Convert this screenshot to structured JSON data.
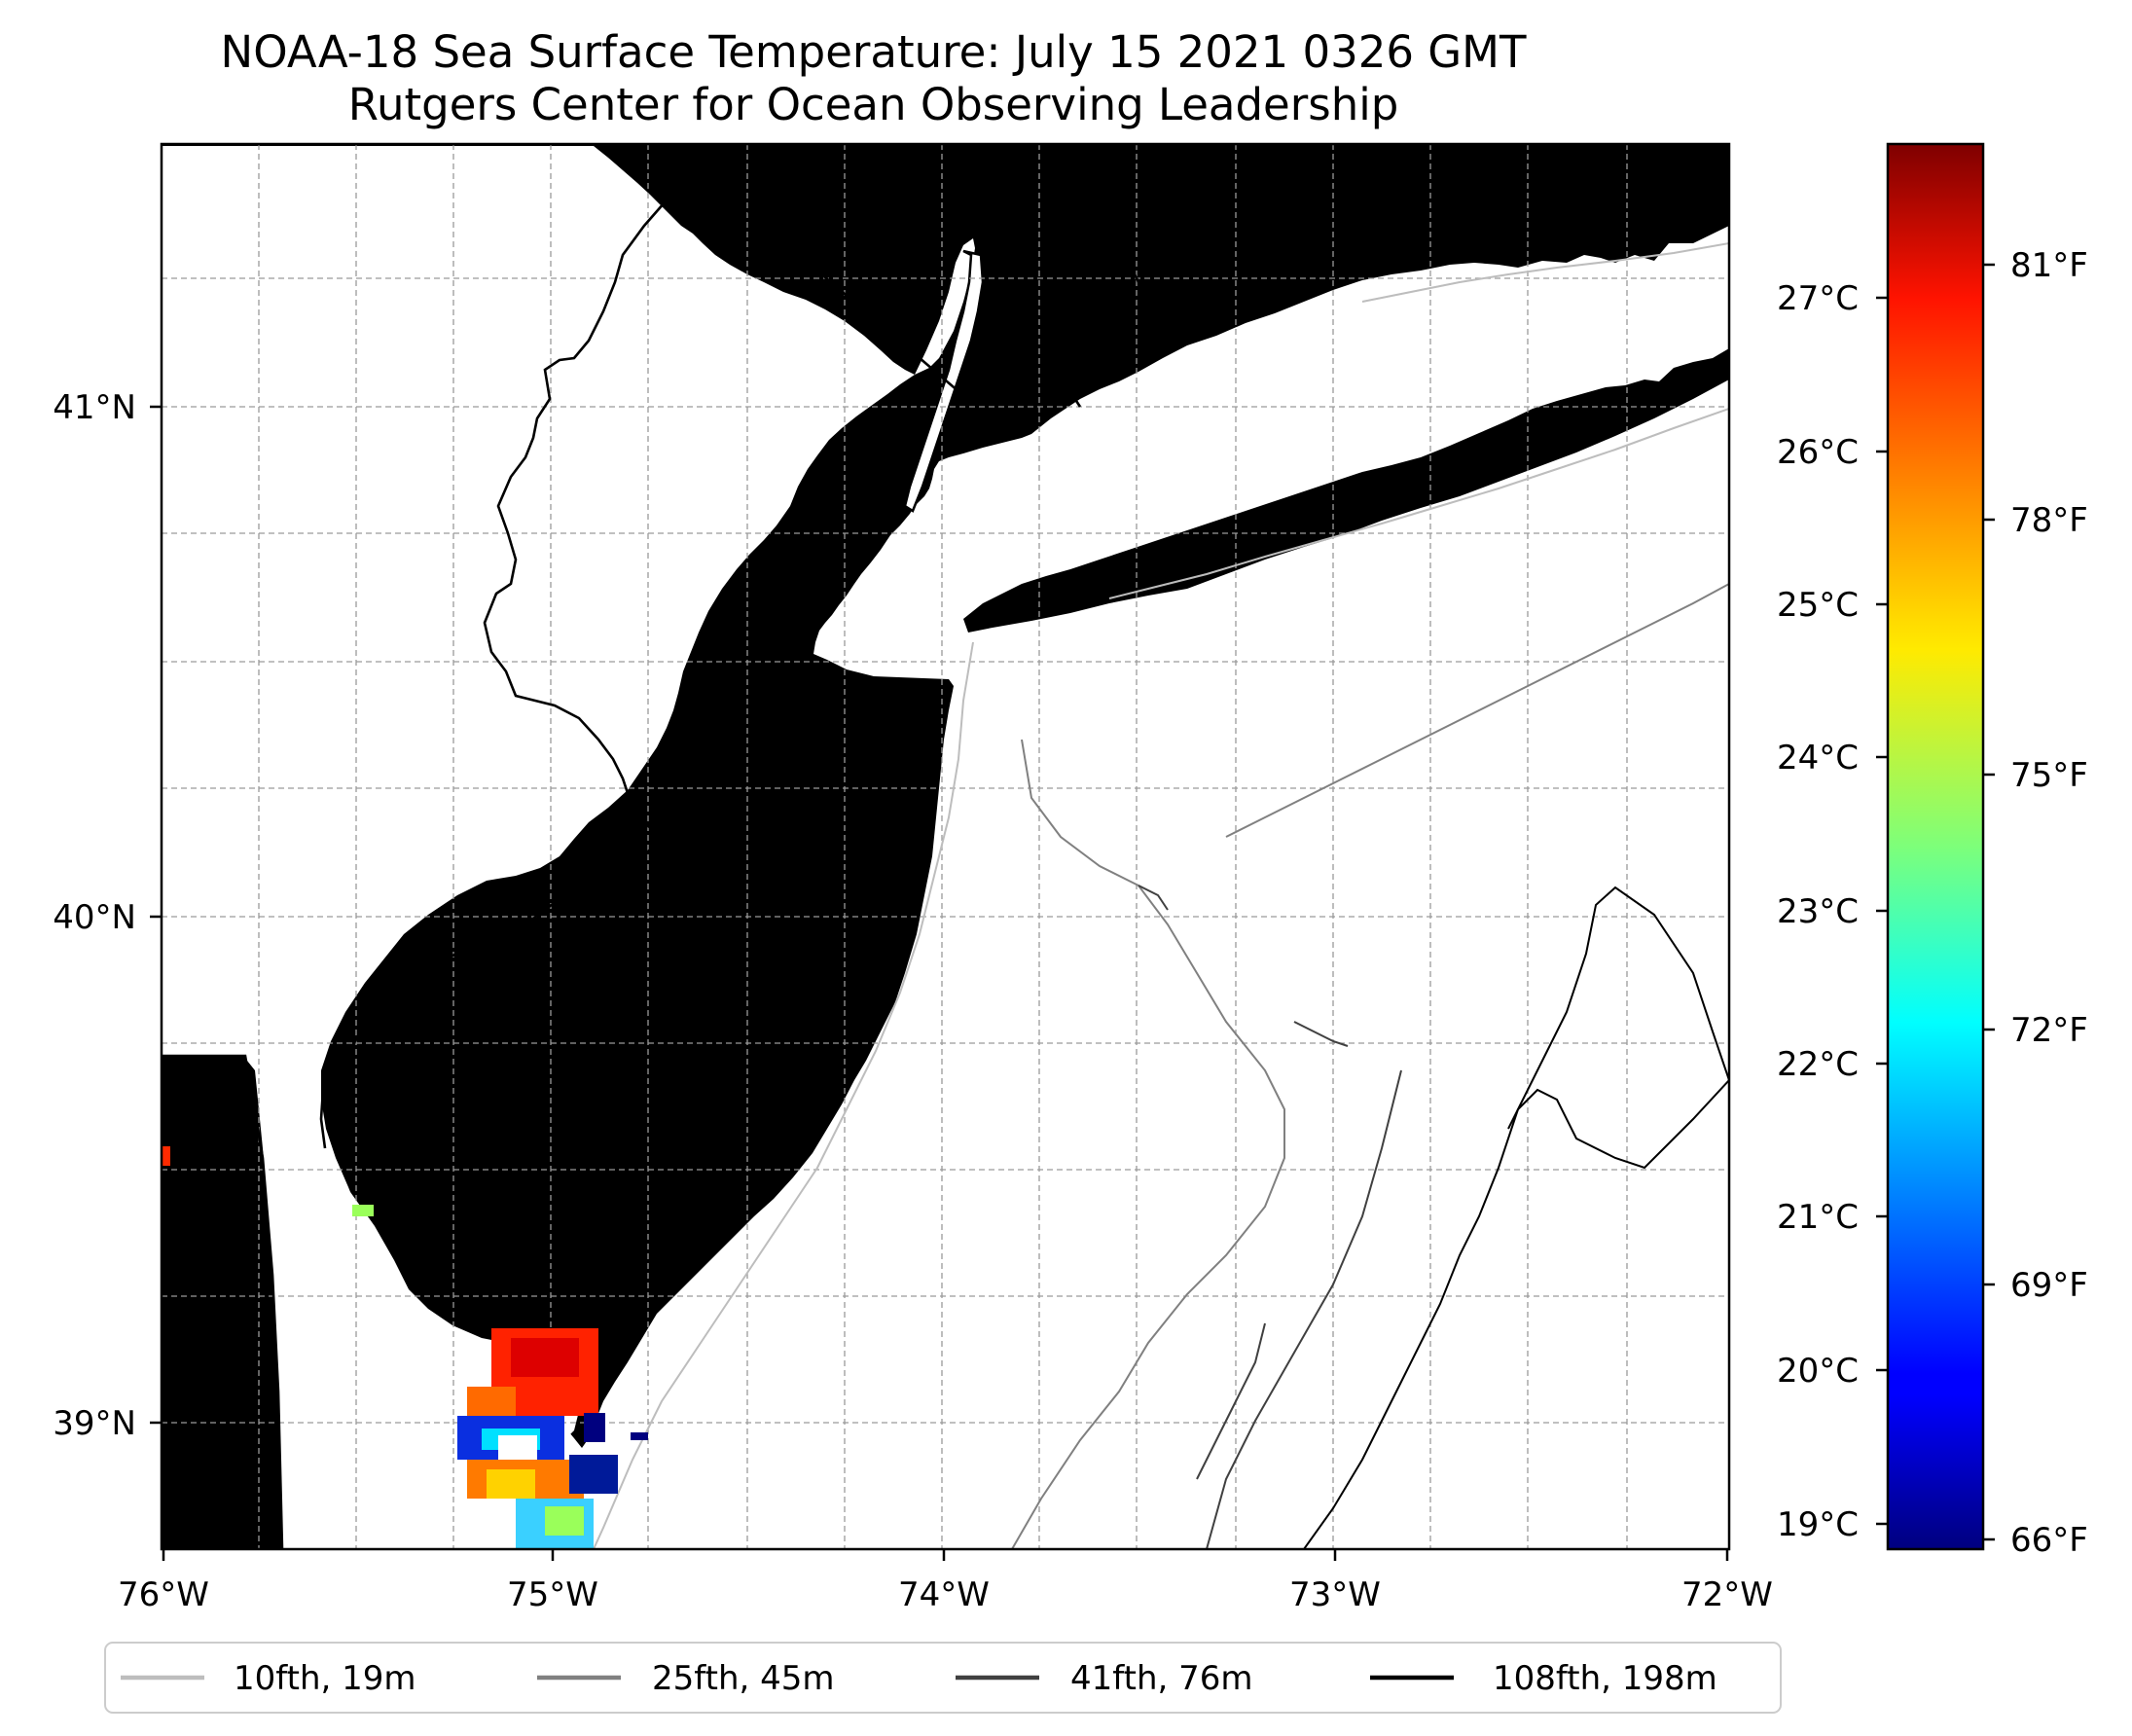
{
  "title": {
    "line1": "NOAA-18 Sea Surface Temperature: July 15 2021 0326 GMT",
    "line2": "Rutgers Center for Ocean Observing Leadership"
  },
  "map": {
    "lon_range": [
      -76,
      -72
    ],
    "lat_range": [
      38.74,
      41.52
    ],
    "land_color": "#d2b48c",
    "ocean_color": "#ffffff",
    "lon_ticks": [
      "76°W",
      "75°W",
      "74°W",
      "73°W",
      "72°W"
    ],
    "lat_ticks": [
      "41°N",
      "40°N",
      "39°N"
    ],
    "gridlines": true
  },
  "colorbar": {
    "colormap": "jet",
    "range_c": [
      18.85,
      27.8
    ],
    "celsius_ticks": [
      "27°C",
      "26°C",
      "25°C",
      "24°C",
      "23°C",
      "22°C",
      "21°C",
      "20°C",
      "19°C"
    ],
    "fahrenheit_ticks": [
      "81°F",
      "78°F",
      "75°F",
      "72°F",
      "69°F",
      "66°F"
    ]
  },
  "legend": {
    "items": [
      {
        "label": "10fth, 19m",
        "color": "#bdbdbd"
      },
      {
        "label": "25fth, 45m",
        "color": "#808080"
      },
      {
        "label": "41fth, 76m",
        "color": "#404040"
      },
      {
        "label": "108fth, 198m",
        "color": "#000000"
      }
    ]
  }
}
